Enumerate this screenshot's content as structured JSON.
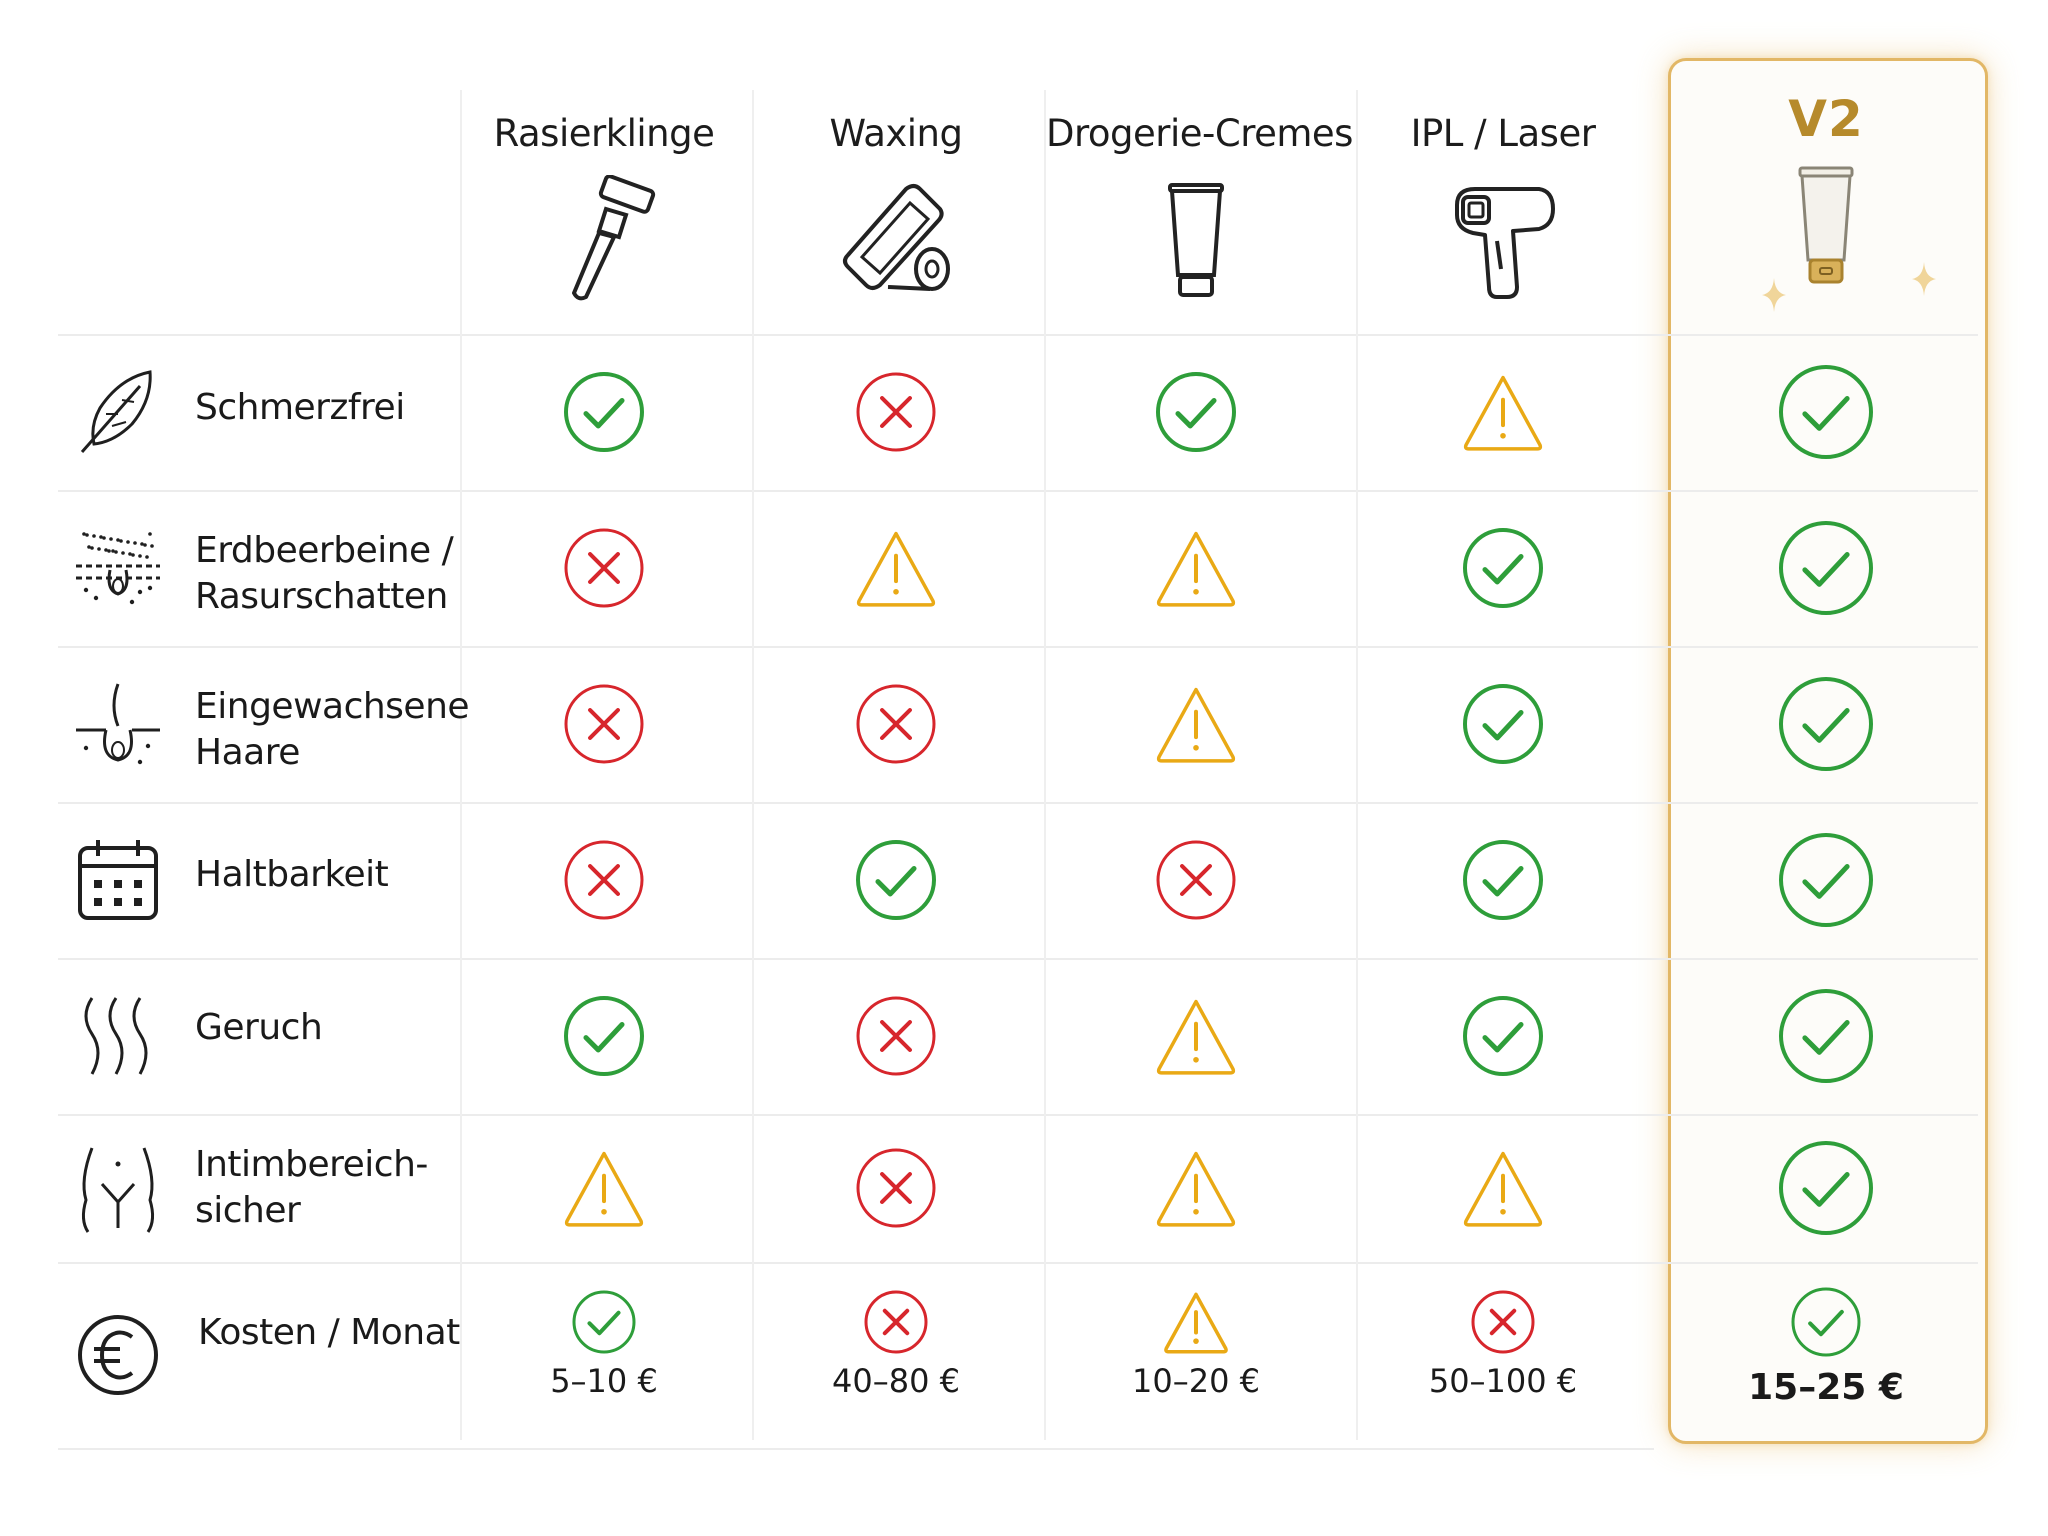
{
  "colors": {
    "check": "#2e9e3a",
    "cross": "#d7262c",
    "warn": "#e9a915",
    "brand": "#b68a2b",
    "highlight_border": "#e2b766"
  },
  "columns": [
    {
      "label": "Rasierklinge",
      "icon": "razor-icon"
    },
    {
      "label": "Waxing",
      "icon": "wax-strip-icon"
    },
    {
      "label": "Drogerie-Cremes",
      "icon": "cream-tube-icon"
    },
    {
      "label": "IPL / Laser",
      "icon": "ipl-device-icon"
    },
    {
      "label": "V2",
      "icon": "v2-tube-icon"
    }
  ],
  "rows": [
    {
      "label_line1": "Schmerzfrei",
      "label_line2": "",
      "icon": "feather-icon",
      "status": [
        "check",
        "cross",
        "check",
        "warn",
        "check"
      ]
    },
    {
      "label_line1": "Erdbeerbeine /",
      "label_line2": "Rasurschatten",
      "icon": "skin-pores-icon",
      "status": [
        "cross",
        "warn",
        "warn",
        "check",
        "check"
      ]
    },
    {
      "label_line1": "Eingewachsene",
      "label_line2": "Haare",
      "icon": "ingrown-hair-icon",
      "status": [
        "cross",
        "cross",
        "warn",
        "check",
        "check"
      ]
    },
    {
      "label_line1": "Haltbarkeit",
      "label_line2": "",
      "icon": "calendar-icon",
      "status": [
        "cross",
        "check",
        "cross",
        "check",
        "check"
      ]
    },
    {
      "label_line1": "Geruch",
      "label_line2": "",
      "icon": "odor-waves-icon",
      "status": [
        "check",
        "cross",
        "warn",
        "check",
        "check"
      ]
    },
    {
      "label_line1": "Intimbereich-",
      "label_line2": "sicher",
      "icon": "body-outline-icon",
      "status": [
        "warn",
        "cross",
        "warn",
        "warn",
        "check"
      ]
    },
    {
      "label_line1": "Kosten / Monat",
      "label_line2": "",
      "icon": "euro-icon",
      "status": [
        "check",
        "cross",
        "warn",
        "cross",
        "check"
      ],
      "costs": [
        "5–10 €",
        "40–80 €",
        "10–20 €",
        "50–100 €",
        "15–25 €"
      ]
    }
  ]
}
